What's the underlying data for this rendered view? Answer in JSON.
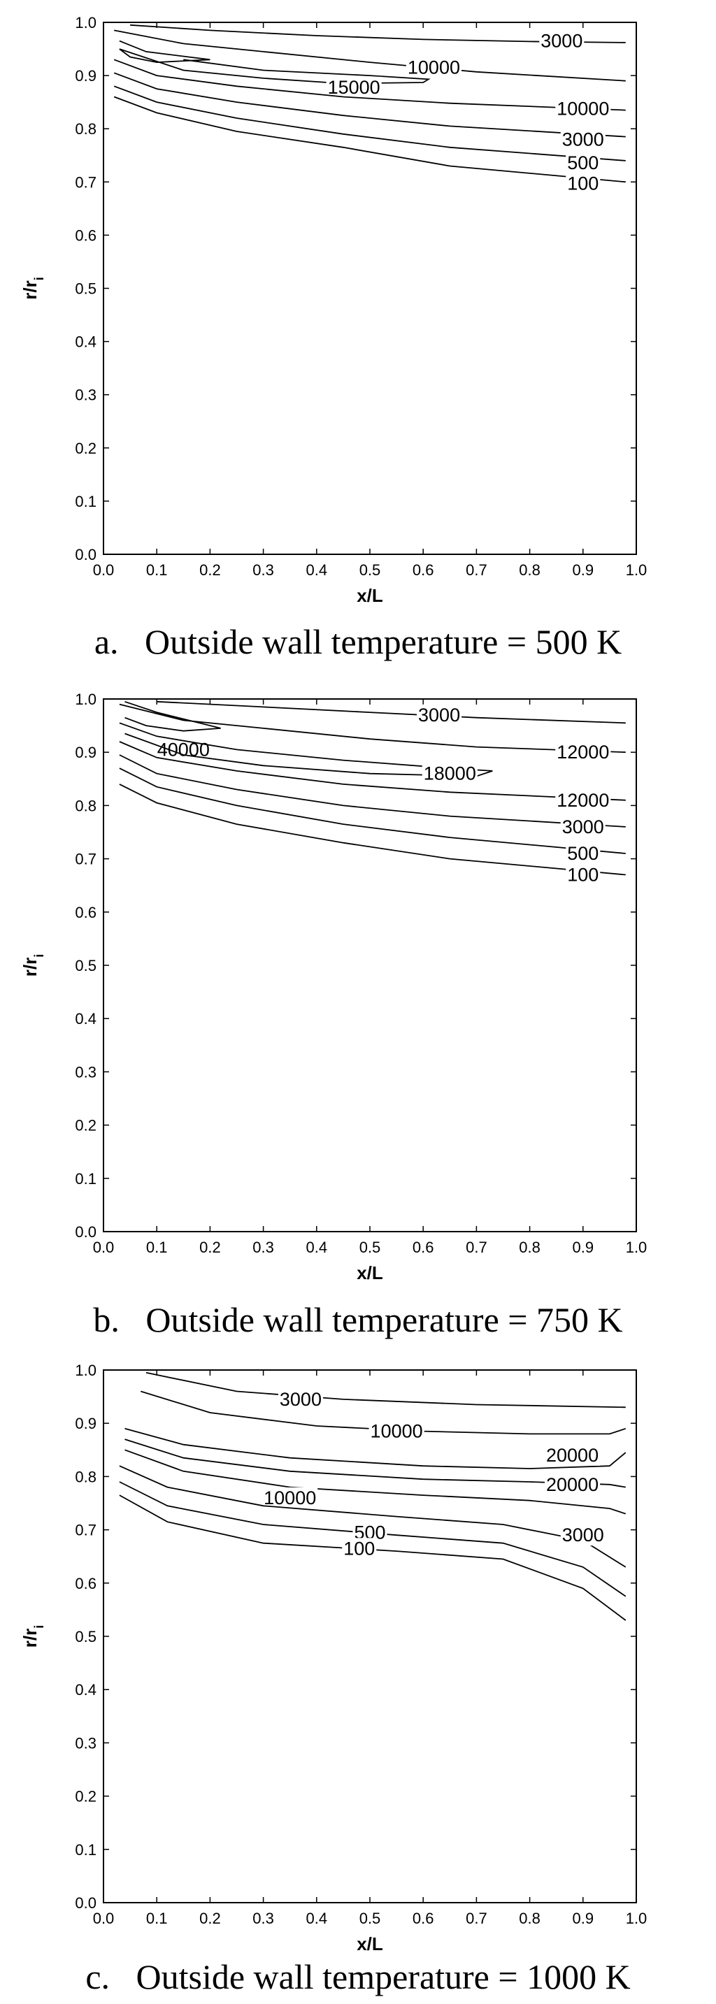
{
  "chart_data": [
    {
      "type": "contour",
      "caption": "a.   Outside wall temperature = 500 K",
      "xlabel": "x/L",
      "ylabel": "r/r_i",
      "xlim": [
        0,
        1
      ],
      "ylim": [
        0,
        1
      ],
      "xticks": [
        "0.0",
        "0.1",
        "0.2",
        "0.3",
        "0.4",
        "0.5",
        "0.6",
        "0.7",
        "0.8",
        "0.9",
        "1.0"
      ],
      "yticks": [
        "0.0",
        "0.1",
        "0.2",
        "0.3",
        "0.4",
        "0.5",
        "0.6",
        "0.7",
        "0.8",
        "0.9",
        "1.0"
      ],
      "contours": [
        {
          "level": "3000",
          "label_at": [
            0.86,
            0.965
          ],
          "points": [
            [
              0.05,
              0.995
            ],
            [
              0.2,
              0.985
            ],
            [
              0.4,
              0.975
            ],
            [
              0.6,
              0.968
            ],
            [
              0.8,
              0.964
            ],
            [
              0.98,
              0.962
            ]
          ]
        },
        {
          "level": "10000",
          "label_at": [
            0.62,
            0.915
          ],
          "points": [
            [
              0.02,
              0.985
            ],
            [
              0.15,
              0.96
            ],
            [
              0.3,
              0.945
            ],
            [
              0.5,
              0.925
            ],
            [
              0.7,
              0.907
            ],
            [
              0.98,
              0.89
            ]
          ]
        },
        {
          "level": "15000",
          "label_at": [
            0.47,
            0.878
          ],
          "points": [
            [
              0.03,
              0.965
            ],
            [
              0.08,
              0.945
            ],
            [
              0.16,
              0.935
            ],
            [
              0.2,
              0.93
            ],
            [
              0.1,
              0.925
            ],
            [
              0.05,
              0.935
            ],
            [
              0.03,
              0.95
            ],
            [
              0.15,
              0.91
            ],
            [
              0.3,
              0.895
            ],
            [
              0.45,
              0.885
            ],
            [
              0.6,
              0.887
            ],
            [
              0.61,
              0.893
            ],
            [
              0.5,
              0.9
            ],
            [
              0.3,
              0.91
            ],
            [
              0.15,
              0.93
            ]
          ]
        },
        {
          "level": "10000",
          "label_at": [
            0.9,
            0.838
          ],
          "points": [
            [
              0.02,
              0.93
            ],
            [
              0.1,
              0.9
            ],
            [
              0.25,
              0.88
            ],
            [
              0.45,
              0.86
            ],
            [
              0.65,
              0.848
            ],
            [
              0.98,
              0.835
            ]
          ]
        },
        {
          "level": "3000",
          "label_at": [
            0.9,
            0.78
          ],
          "points": [
            [
              0.02,
              0.905
            ],
            [
              0.1,
              0.875
            ],
            [
              0.25,
              0.85
            ],
            [
              0.45,
              0.825
            ],
            [
              0.65,
              0.805
            ],
            [
              0.98,
              0.785
            ]
          ]
        },
        {
          "level": "500",
          "label_at": [
            0.9,
            0.736
          ],
          "points": [
            [
              0.02,
              0.88
            ],
            [
              0.1,
              0.85
            ],
            [
              0.25,
              0.82
            ],
            [
              0.45,
              0.79
            ],
            [
              0.65,
              0.765
            ],
            [
              0.98,
              0.74
            ]
          ]
        },
        {
          "level": "100",
          "label_at": [
            0.9,
            0.697
          ],
          "points": [
            [
              0.02,
              0.86
            ],
            [
              0.1,
              0.83
            ],
            [
              0.25,
              0.795
            ],
            [
              0.45,
              0.765
            ],
            [
              0.65,
              0.73
            ],
            [
              0.98,
              0.7
            ]
          ]
        }
      ]
    },
    {
      "type": "contour",
      "caption": "b.   Outside wall temperature = 750 K",
      "xlabel": "x/L",
      "ylabel": "r/r_i",
      "xlim": [
        0,
        1
      ],
      "ylim": [
        0,
        1
      ],
      "xticks": [
        "0.0",
        "0.1",
        "0.2",
        "0.3",
        "0.4",
        "0.5",
        "0.6",
        "0.7",
        "0.8",
        "0.9",
        "1.0"
      ],
      "yticks": [
        "0.0",
        "0.1",
        "0.2",
        "0.3",
        "0.4",
        "0.5",
        "0.6",
        "0.7",
        "0.8",
        "0.9",
        "1.0"
      ],
      "contours": [
        {
          "level": "3000",
          "label_at": [
            0.63,
            0.97
          ],
          "points": [
            [
              0.1,
              0.995
            ],
            [
              0.3,
              0.985
            ],
            [
              0.5,
              0.975
            ],
            [
              0.7,
              0.965
            ],
            [
              0.98,
              0.955
            ]
          ]
        },
        {
          "level": "40000",
          "label_at": [
            0.15,
            0.905
          ],
          "points": [
            [
              0.04,
              0.995
            ],
            [
              0.1,
              0.975
            ],
            [
              0.18,
              0.955
            ],
            [
              0.22,
              0.945
            ],
            [
              0.15,
              0.94
            ],
            [
              0.08,
              0.95
            ],
            [
              0.04,
              0.965
            ]
          ]
        },
        {
          "level": "12000",
          "label_at": [
            0.9,
            0.9
          ],
          "points": [
            [
              0.03,
              0.99
            ],
            [
              0.15,
              0.96
            ],
            [
              0.3,
              0.945
            ],
            [
              0.5,
              0.925
            ],
            [
              0.7,
              0.91
            ],
            [
              0.98,
              0.9
            ]
          ]
        },
        {
          "level": "18000",
          "label_at": [
            0.65,
            0.86
          ],
          "points": [
            [
              0.03,
              0.955
            ],
            [
              0.1,
              0.93
            ],
            [
              0.25,
              0.905
            ],
            [
              0.45,
              0.885
            ],
            [
              0.65,
              0.87
            ],
            [
              0.73,
              0.865
            ],
            [
              0.7,
              0.855
            ],
            [
              0.5,
              0.86
            ],
            [
              0.3,
              0.875
            ],
            [
              0.15,
              0.895
            ],
            [
              0.04,
              0.935
            ]
          ]
        },
        {
          "level": "12000",
          "label_at": [
            0.9,
            0.81
          ],
          "points": [
            [
              0.03,
              0.92
            ],
            [
              0.1,
              0.89
            ],
            [
              0.25,
              0.865
            ],
            [
              0.45,
              0.84
            ],
            [
              0.65,
              0.825
            ],
            [
              0.98,
              0.81
            ]
          ]
        },
        {
          "level": "3000",
          "label_at": [
            0.9,
            0.76
          ],
          "points": [
            [
              0.03,
              0.895
            ],
            [
              0.1,
              0.86
            ],
            [
              0.25,
              0.83
            ],
            [
              0.45,
              0.8
            ],
            [
              0.65,
              0.78
            ],
            [
              0.98,
              0.76
            ]
          ]
        },
        {
          "level": "500",
          "label_at": [
            0.9,
            0.71
          ],
          "points": [
            [
              0.03,
              0.87
            ],
            [
              0.1,
              0.835
            ],
            [
              0.25,
              0.8
            ],
            [
              0.45,
              0.765
            ],
            [
              0.65,
              0.74
            ],
            [
              0.98,
              0.71
            ]
          ]
        },
        {
          "level": "100",
          "label_at": [
            0.9,
            0.67
          ],
          "points": [
            [
              0.03,
              0.84
            ],
            [
              0.1,
              0.805
            ],
            [
              0.25,
              0.765
            ],
            [
              0.45,
              0.73
            ],
            [
              0.65,
              0.7
            ],
            [
              0.98,
              0.67
            ]
          ]
        }
      ]
    },
    {
      "type": "contour",
      "caption": "c.   Outside wall temperature = 1000 K",
      "xlabel": "x/L",
      "ylabel": "r/r_i",
      "xlim": [
        0,
        1
      ],
      "ylim": [
        0,
        1
      ],
      "xticks": [
        "0.0",
        "0.1",
        "0.2",
        "0.3",
        "0.4",
        "0.5",
        "0.6",
        "0.7",
        "0.8",
        "0.9",
        "1.0"
      ],
      "yticks": [
        "0.0",
        "0.1",
        "0.2",
        "0.3",
        "0.4",
        "0.5",
        "0.6",
        "0.7",
        "0.8",
        "0.9",
        "1.0"
      ],
      "contours": [
        {
          "level": "3000",
          "label_at": [
            0.37,
            0.945
          ],
          "points": [
            [
              0.08,
              0.995
            ],
            [
              0.25,
              0.96
            ],
            [
              0.45,
              0.945
            ],
            [
              0.7,
              0.935
            ],
            [
              0.98,
              0.93
            ]
          ]
        },
        {
          "level": "10000",
          "label_at": [
            0.55,
            0.885
          ],
          "points": [
            [
              0.07,
              0.96
            ],
            [
              0.2,
              0.92
            ],
            [
              0.4,
              0.895
            ],
            [
              0.6,
              0.885
            ],
            [
              0.8,
              0.88
            ],
            [
              0.95,
              0.88
            ],
            [
              0.98,
              0.89
            ]
          ]
        },
        {
          "level": "20000",
          "label_at": [
            0.88,
            0.84
          ],
          "points": [
            [
              0.04,
              0.89
            ],
            [
              0.15,
              0.86
            ],
            [
              0.35,
              0.835
            ],
            [
              0.6,
              0.82
            ],
            [
              0.8,
              0.815
            ],
            [
              0.95,
              0.82
            ],
            [
              0.98,
              0.845
            ]
          ]
        },
        {
          "level": "20000",
          "label_at": [
            0.88,
            0.785
          ],
          "points": [
            [
              0.04,
              0.87
            ],
            [
              0.15,
              0.835
            ],
            [
              0.35,
              0.81
            ],
            [
              0.6,
              0.795
            ],
            [
              0.8,
              0.79
            ],
            [
              0.95,
              0.785
            ],
            [
              0.98,
              0.78
            ]
          ]
        },
        {
          "level": "10000",
          "label_at": [
            0.35,
            0.76
          ],
          "points": [
            [
              0.04,
              0.85
            ],
            [
              0.15,
              0.81
            ],
            [
              0.35,
              0.78
            ],
            [
              0.6,
              0.765
            ],
            [
              0.8,
              0.755
            ],
            [
              0.95,
              0.74
            ],
            [
              0.98,
              0.73
            ]
          ]
        },
        {
          "level": "3000",
          "label_at": [
            0.9,
            0.69
          ],
          "points": [
            [
              0.03,
              0.82
            ],
            [
              0.12,
              0.78
            ],
            [
              0.3,
              0.745
            ],
            [
              0.55,
              0.725
            ],
            [
              0.75,
              0.71
            ],
            [
              0.9,
              0.68
            ],
            [
              0.98,
              0.63
            ]
          ]
        },
        {
          "level": "500",
          "label_at": [
            0.5,
            0.695
          ],
          "points": [
            [
              0.03,
              0.79
            ],
            [
              0.12,
              0.745
            ],
            [
              0.3,
              0.71
            ],
            [
              0.55,
              0.69
            ],
            [
              0.75,
              0.675
            ],
            [
              0.9,
              0.63
            ],
            [
              0.98,
              0.575
            ]
          ]
        },
        {
          "level": "100",
          "label_at": [
            0.48,
            0.665
          ],
          "points": [
            [
              0.03,
              0.765
            ],
            [
              0.12,
              0.715
            ],
            [
              0.3,
              0.675
            ],
            [
              0.55,
              0.66
            ],
            [
              0.75,
              0.645
            ],
            [
              0.9,
              0.59
            ],
            [
              0.98,
              0.53
            ]
          ]
        }
      ]
    }
  ]
}
